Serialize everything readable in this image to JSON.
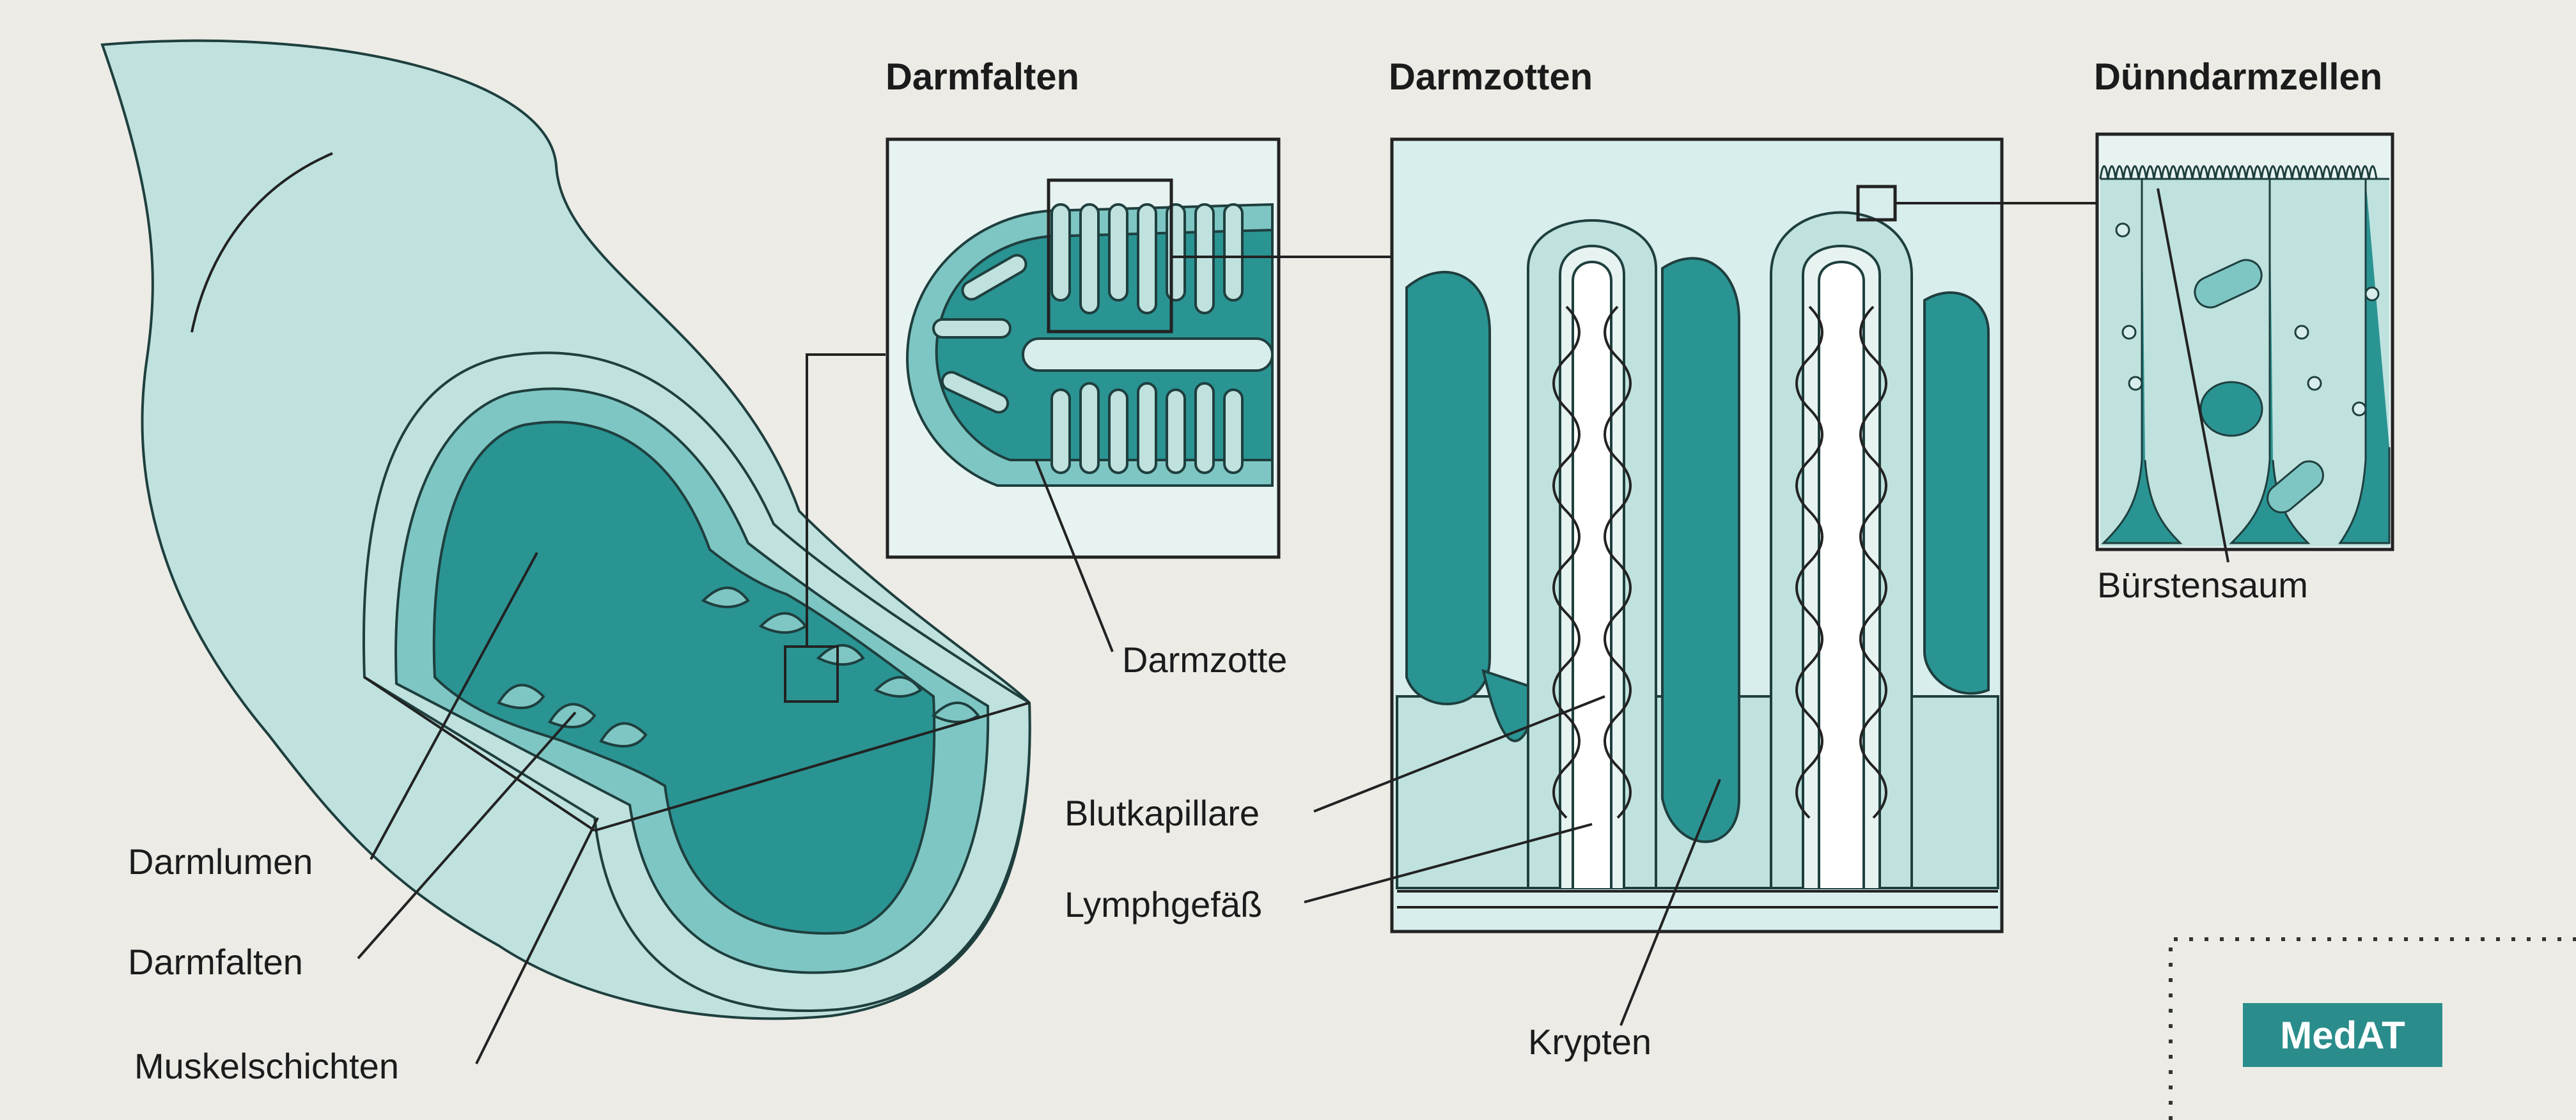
{
  "titles": {
    "darmfalten": "Darmfalten",
    "darmzotten": "Darmzotten",
    "duenndarmzellen": "Dünndarmzellen"
  },
  "labels": {
    "darmlumen": "Darmlumen",
    "darmfalten": "Darmfalten",
    "muskelschichten": "Muskelschichten",
    "darmzotte": "Darmzotte",
    "blutkapillare": "Blutkapillare",
    "lymphgefaess": "Lymphgefäß",
    "krypten": "Krypten",
    "buerstensaum": "Bürstensaum"
  },
  "badge": {
    "text": "MedAT"
  },
  "colors": {
    "teal_dark": "#2a9493",
    "teal_mid": "#7ec6c3",
    "teal_light": "#bfe2df",
    "teal_pale": "#d8eeec",
    "outline": "#1e3f3e",
    "badge_bg": "#2a8d8b",
    "paper": "#ecebe6"
  }
}
